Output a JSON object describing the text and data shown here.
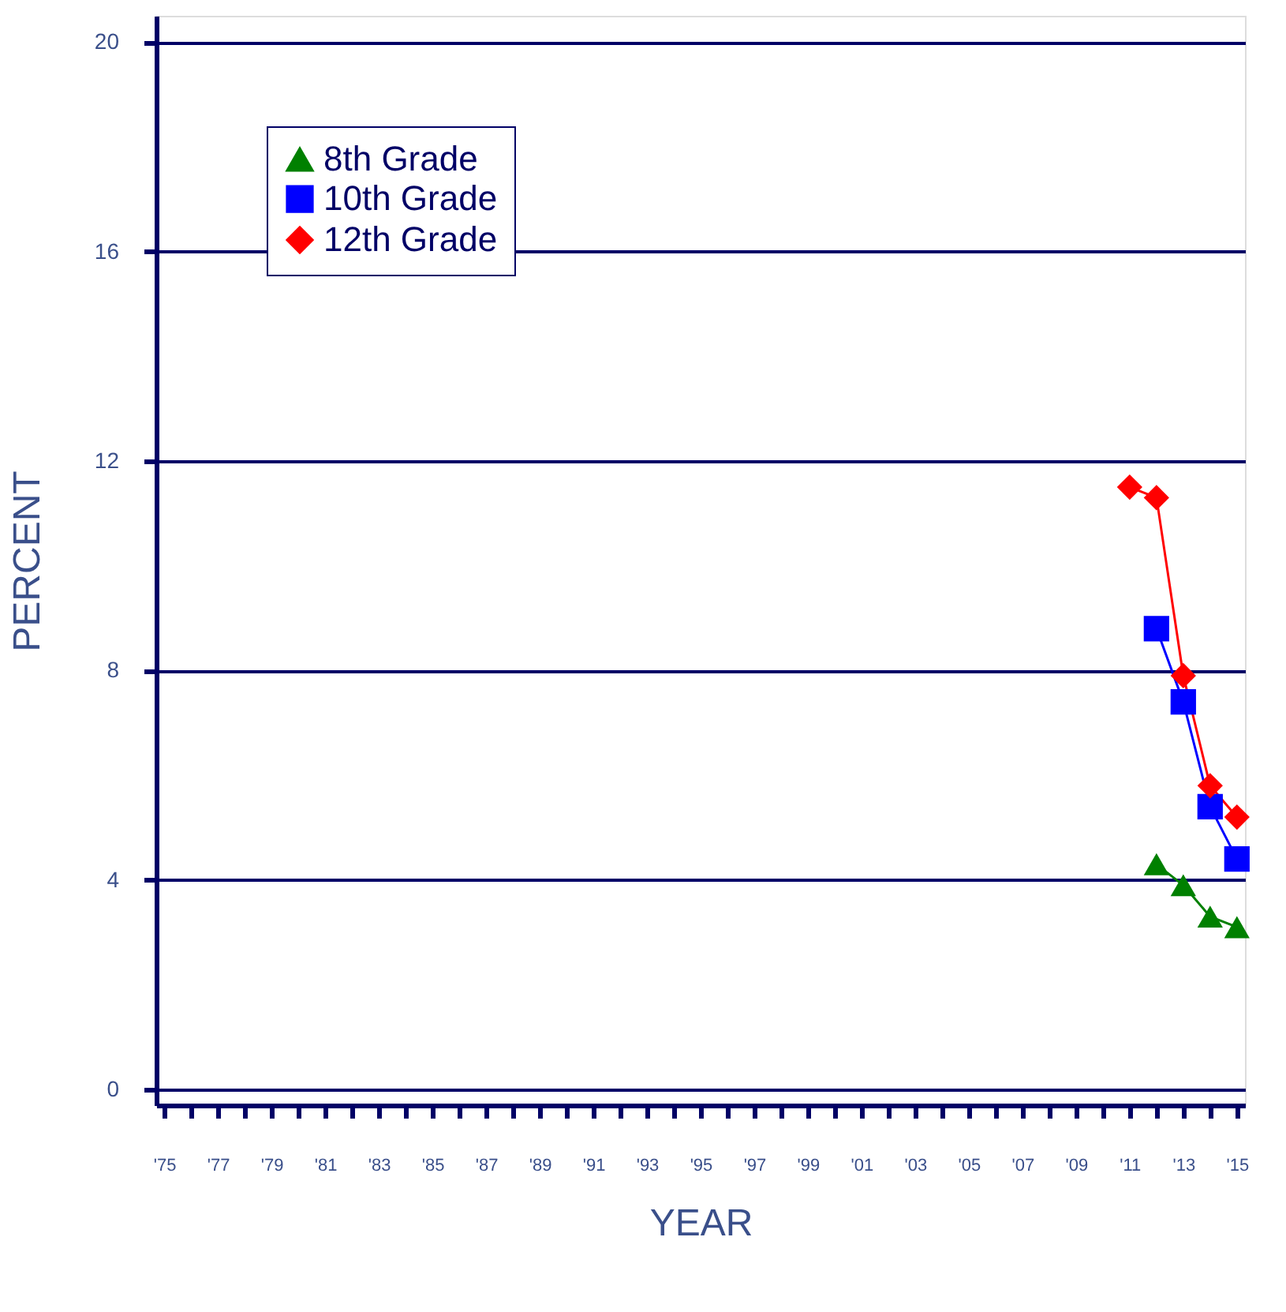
{
  "chart_data": {
    "type": "line",
    "xlabel": "YEAR",
    "ylabel": "PERCENT",
    "series": [
      {
        "name": "8th Grade",
        "color": "#008000",
        "marker": "triangle",
        "x": [
          2012,
          2013,
          2014,
          2015
        ],
        "values": [
          4.3,
          3.9,
          3.3,
          3.1
        ]
      },
      {
        "name": "10th Grade",
        "color": "#0000ff",
        "marker": "square",
        "x": [
          2012,
          2013,
          2014,
          2015
        ],
        "values": [
          8.8,
          7.4,
          5.4,
          4.4
        ]
      },
      {
        "name": "12th Grade",
        "color": "#ff0000",
        "marker": "diamond",
        "x": [
          2011,
          2012,
          2013,
          2014,
          2015
        ],
        "values": [
          11.5,
          11.3,
          7.9,
          5.8,
          5.2
        ]
      }
    ],
    "xlim": [
      1974.7,
      2015.3
    ],
    "xticks": [
      {
        "value": 1975,
        "label": "'75"
      },
      {
        "value": 1976,
        "label": null
      },
      {
        "value": 1977,
        "label": "'77"
      },
      {
        "value": 1978,
        "label": null
      },
      {
        "value": 1979,
        "label": "'79"
      },
      {
        "value": 1980,
        "label": null
      },
      {
        "value": 1981,
        "label": "'81"
      },
      {
        "value": 1982,
        "label": null
      },
      {
        "value": 1983,
        "label": "'83"
      },
      {
        "value": 1984,
        "label": null
      },
      {
        "value": 1985,
        "label": "'85"
      },
      {
        "value": 1986,
        "label": null
      },
      {
        "value": 1987,
        "label": "'87"
      },
      {
        "value": 1988,
        "label": null
      },
      {
        "value": 1989,
        "label": "'89"
      },
      {
        "value": 1990,
        "label": null
      },
      {
        "value": 1991,
        "label": "'91"
      },
      {
        "value": 1992,
        "label": null
      },
      {
        "value": 1993,
        "label": "'93"
      },
      {
        "value": 1994,
        "label": null
      },
      {
        "value": 1995,
        "label": "'95"
      },
      {
        "value": 1996,
        "label": null
      },
      {
        "value": 1997,
        "label": "'97"
      },
      {
        "value": 1998,
        "label": null
      },
      {
        "value": 1999,
        "label": "'99"
      },
      {
        "value": 2000,
        "label": null
      },
      {
        "value": 2001,
        "label": "'01"
      },
      {
        "value": 2002,
        "label": null
      },
      {
        "value": 2003,
        "label": "'03"
      },
      {
        "value": 2004,
        "label": null
      },
      {
        "value": 2005,
        "label": "'05"
      },
      {
        "value": 2006,
        "label": null
      },
      {
        "value": 2007,
        "label": "'07"
      },
      {
        "value": 2008,
        "label": null
      },
      {
        "value": 2009,
        "label": "'09"
      },
      {
        "value": 2010,
        "label": null
      },
      {
        "value": 2011,
        "label": "'11"
      },
      {
        "value": 2012,
        "label": null
      },
      {
        "value": 2013,
        "label": "'13"
      },
      {
        "value": 2014,
        "label": null
      },
      {
        "value": 2015,
        "label": "'15"
      }
    ],
    "ylim": [
      -0.3,
      20.5
    ],
    "yticks": [
      0,
      4,
      8,
      12,
      16,
      20
    ],
    "grid": "y",
    "legend": "top left",
    "line_style": "solid"
  }
}
